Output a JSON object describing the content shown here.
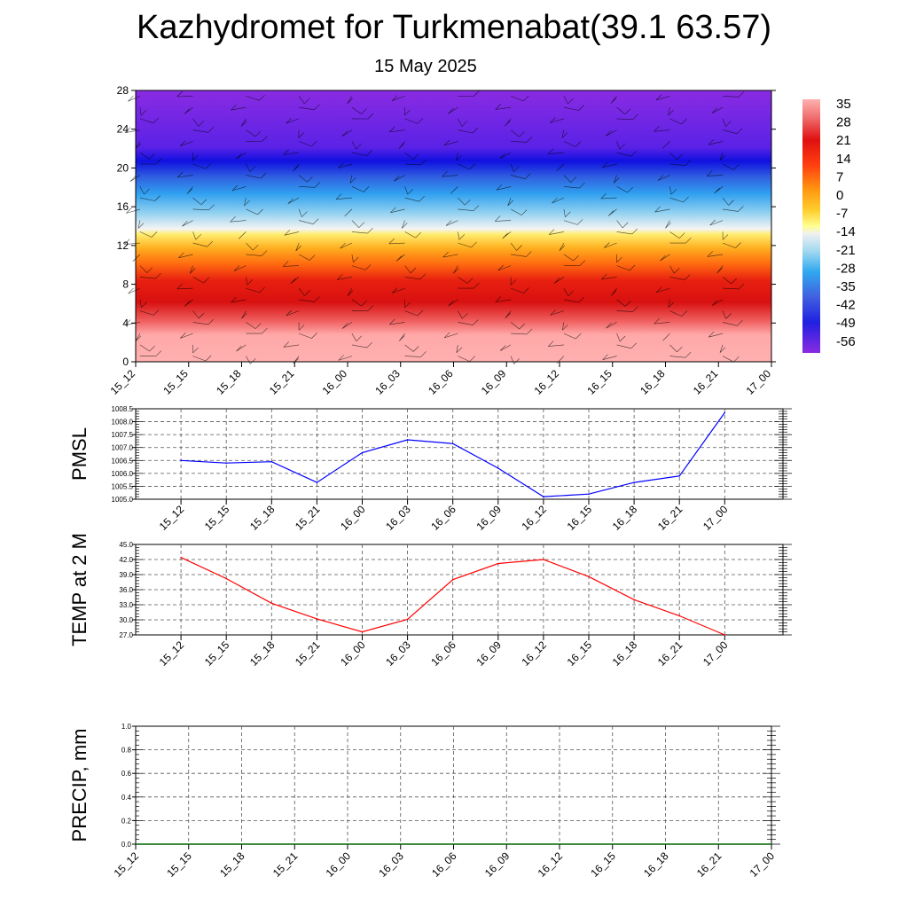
{
  "header": {
    "title": "Kazhydromet for Turkmenabat(39.1 63.57)",
    "subtitle": "15 May 2025"
  },
  "colors": {
    "pmsl_line": "#0000ff",
    "temp_line": "#ff0000",
    "precip_line": "#006400"
  },
  "chart_data": [
    {
      "type": "heatmap",
      "x": [
        "15_12",
        "15_15",
        "15_18",
        "15_21",
        "16_00",
        "16_03",
        "16_06",
        "16_09",
        "16_12",
        "16_15",
        "16_18",
        "16_21",
        "17_00"
      ],
      "ylim": [
        0,
        28
      ],
      "yticks": [
        0,
        4,
        8,
        12,
        16,
        20,
        24,
        28
      ],
      "colorbar": {
        "labels": [
          "35",
          "28",
          "21",
          "14",
          "7",
          "0",
          "-7",
          "-14",
          "-21",
          "-28",
          "-35",
          "-42",
          "-49",
          "-56"
        ],
        "range": [
          -60,
          38
        ]
      },
      "bands": [
        {
          "from": 0,
          "to": 3,
          "value": 33
        },
        {
          "from": 3,
          "to": 5,
          "value": 28
        },
        {
          "from": 5,
          "to": 8,
          "value": 22
        },
        {
          "from": 8,
          "to": 10,
          "value": 15
        },
        {
          "from": 10,
          "to": 12,
          "value": 5
        },
        {
          "from": 12,
          "to": 13.5,
          "value": -8
        },
        {
          "from": 13.5,
          "to": 16,
          "value": -22
        },
        {
          "from": 16,
          "to": 19,
          "value": -38
        },
        {
          "from": 19,
          "to": 22,
          "value": -52
        },
        {
          "from": 22,
          "to": 28,
          "value": -58
        }
      ],
      "grid": false
    },
    {
      "type": "line",
      "ylabel": "PMSL",
      "x": [
        "15_12",
        "15_15",
        "15_18",
        "15_21",
        "16_00",
        "16_03",
        "16_06",
        "16_09",
        "16_12",
        "16_15",
        "16_18",
        "16_21",
        "17_00"
      ],
      "series": [
        {
          "values": [
            1006.5,
            1006.4,
            1006.45,
            1005.65,
            1006.8,
            1007.3,
            1007.15,
            1006.2,
            1005.1,
            1005.2,
            1005.65,
            1005.9,
            1008.35
          ]
        }
      ],
      "ylim": [
        1005.0,
        1008.5
      ],
      "yticks": [
        "1005.0",
        "1005.5",
        "1006.0",
        "1006.5",
        "1007.0",
        "1007.5",
        "1008.0",
        "1008.5"
      ],
      "grid": true
    },
    {
      "type": "line",
      "ylabel": "TEMP at 2 M",
      "x": [
        "15_12",
        "15_15",
        "15_18",
        "15_21",
        "16_00",
        "16_03",
        "16_06",
        "16_09",
        "16_12",
        "16_15",
        "16_18",
        "16_21",
        "17_00"
      ],
      "series": [
        {
          "values": [
            42.4,
            38.2,
            33.3,
            30.2,
            27.6,
            30.1,
            38.0,
            41.2,
            42.0,
            38.6,
            34.0,
            30.8,
            27.0
          ]
        }
      ],
      "ylim": [
        27.0,
        45.0
      ],
      "yticks": [
        "27.0",
        "30.0",
        "33.0",
        "36.0",
        "39.0",
        "42.0",
        "45.0"
      ],
      "grid": true
    },
    {
      "type": "line",
      "ylabel": "PRECIP, mm",
      "x": [
        "15_12",
        "15_15",
        "15_18",
        "15_21",
        "16_00",
        "16_03",
        "16_06",
        "16_09",
        "16_12",
        "16_15",
        "16_18",
        "16_21",
        "17_00"
      ],
      "series": [
        {
          "values": [
            0,
            0,
            0,
            0,
            0,
            0,
            0,
            0,
            0,
            0,
            0,
            0,
            0
          ]
        }
      ],
      "ylim": [
        0.0,
        1.0
      ],
      "yticks": [
        "0.0",
        "0.2",
        "0.4",
        "0.6",
        "0.8",
        "1.0"
      ],
      "grid": true
    }
  ]
}
